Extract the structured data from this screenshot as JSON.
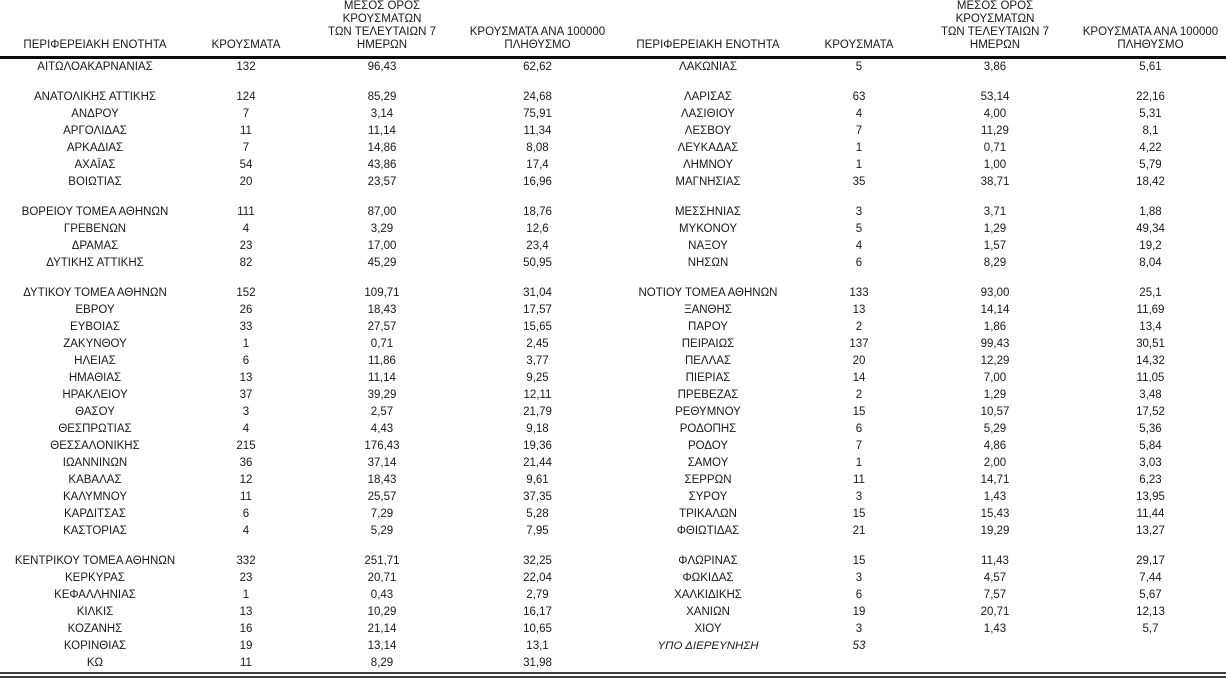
{
  "document_type": "regional-covid-case-table",
  "colors": {
    "background": "#ffffff",
    "text": "#1a1a1a",
    "header_rule": "#0c0c0c",
    "bottom_rule": "#3f3f3f"
  },
  "header": {
    "region": "ΠΕΡΙΦΕΡΕΙΑΚΗ ΕΝΟΤΗΤΑ",
    "cases": "ΚΡΟΥΣΜΑΤΑ",
    "avg7": "ΜΕΣΟΣ ΟΡΟΣ ΚΡΟΥΣΜΑΤΩΝ\nΤΩΝ ΤΕΛΕΥΤΑΙΩΝ 7\nΗΜΕΡΩΝ",
    "per100k": "ΚΡΟΥΣΜΑΤΑ ΑΝΑ 100000\nΠΛΗΘΥΣΜΟ"
  },
  "rows": [
    {
      "left": [
        "ΑΙΤΩΛΟΑΚΑΡΝΑΝΙΑΣ",
        "132",
        "96,43",
        "62,62"
      ],
      "right": [
        "ΛΑΚΩΝΙΑΣ",
        "5",
        "3,86",
        "5,61"
      ]
    },
    {
      "gap": true
    },
    {
      "left": [
        "ΑΝΑΤΟΛΙΚΗΣ ΑΤΤΙΚΗΣ",
        "124",
        "85,29",
        "24,68"
      ],
      "right": [
        "ΛΑΡΙΣΑΣ",
        "63",
        "53,14",
        "22,16"
      ]
    },
    {
      "left": [
        "ΑΝΔΡΟΥ",
        "7",
        "3,14",
        "75,91"
      ],
      "right": [
        "ΛΑΣΙΘΙΟΥ",
        "4",
        "4,00",
        "5,31"
      ]
    },
    {
      "left": [
        "ΑΡΓΟΛΙΔΑΣ",
        "11",
        "11,14",
        "11,34"
      ],
      "right": [
        "ΛΕΣΒΟΥ",
        "7",
        "11,29",
        "8,1"
      ]
    },
    {
      "left": [
        "ΑΡΚΑΔΙΑΣ",
        "7",
        "14,86",
        "8,08"
      ],
      "right": [
        "ΛΕΥΚΑΔΑΣ",
        "1",
        "0,71",
        "4,22"
      ]
    },
    {
      "left": [
        "ΑΧΑΪΑΣ",
        "54",
        "43,86",
        "17,4"
      ],
      "right": [
        "ΛΗΜΝΟΥ",
        "1",
        "1,00",
        "5,79"
      ]
    },
    {
      "left": [
        "ΒΟΙΩΤΙΑΣ",
        "20",
        "23,57",
        "16,96"
      ],
      "right": [
        "ΜΑΓΝΗΣΙΑΣ",
        "35",
        "38,71",
        "18,42"
      ]
    },
    {
      "gap": true
    },
    {
      "left": [
        "ΒΟΡΕΙΟΥ ΤΟΜΕΑ ΑΘΗΝΩΝ",
        "111",
        "87,00",
        "18,76"
      ],
      "right": [
        "ΜΕΣΣΗΝΙΑΣ",
        "3",
        "3,71",
        "1,88"
      ]
    },
    {
      "left": [
        "ΓΡΕΒΕΝΩΝ",
        "4",
        "3,29",
        "12,6"
      ],
      "right": [
        "ΜΥΚΟΝΟΥ",
        "5",
        "1,29",
        "49,34"
      ]
    },
    {
      "left": [
        "ΔΡΑΜΑΣ",
        "23",
        "17,00",
        "23,4"
      ],
      "right": [
        "ΝΑΞΟΥ",
        "4",
        "1,57",
        "19,2"
      ]
    },
    {
      "left": [
        "ΔΥΤΙΚΗΣ ΑΤΤΙΚΗΣ",
        "82",
        "45,29",
        "50,95"
      ],
      "right": [
        "ΝΗΣΩΝ",
        "6",
        "8,29",
        "8,04"
      ]
    },
    {
      "gap": true
    },
    {
      "left": [
        "ΔΥΤΙΚΟΥ ΤΟΜΕΑ ΑΘΗΝΩΝ",
        "152",
        "109,71",
        "31,04"
      ],
      "right": [
        "ΝΟΤΙΟΥ ΤΟΜΕΑ ΑΘΗΝΩΝ",
        "133",
        "93,00",
        "25,1"
      ]
    },
    {
      "left": [
        "ΕΒΡΟΥ",
        "26",
        "18,43",
        "17,57"
      ],
      "right": [
        "ΞΑΝΘΗΣ",
        "13",
        "14,14",
        "11,69"
      ]
    },
    {
      "left": [
        "ΕΥΒΟΙΑΣ",
        "33",
        "27,57",
        "15,65"
      ],
      "right": [
        "ΠΑΡΟΥ",
        "2",
        "1,86",
        "13,4"
      ]
    },
    {
      "left": [
        "ΖΑΚΥΝΘΟΥ",
        "1",
        "0,71",
        "2,45"
      ],
      "right": [
        "ΠΕΙΡΑΙΩΣ",
        "137",
        "99,43",
        "30,51"
      ]
    },
    {
      "left": [
        "ΗΛΕΙΑΣ",
        "6",
        "11,86",
        "3,77"
      ],
      "right": [
        "ΠΕΛΛΑΣ",
        "20",
        "12,29",
        "14,32"
      ]
    },
    {
      "left": [
        "ΗΜΑΘΙΑΣ",
        "13",
        "11,14",
        "9,25"
      ],
      "right": [
        "ΠΙΕΡΙΑΣ",
        "14",
        "7,00",
        "11,05"
      ]
    },
    {
      "left": [
        "ΗΡΑΚΛΕΙΟΥ",
        "37",
        "39,29",
        "12,11"
      ],
      "right": [
        "ΠΡΕΒΕΖΑΣ",
        "2",
        "1,29",
        "3,48"
      ]
    },
    {
      "left": [
        "ΘΑΣΟΥ",
        "3",
        "2,57",
        "21,79"
      ],
      "right": [
        "ΡΕΘΥΜΝΟΥ",
        "15",
        "10,57",
        "17,52"
      ]
    },
    {
      "left": [
        "ΘΕΣΠΡΩΤΙΑΣ",
        "4",
        "4,43",
        "9,18"
      ],
      "right": [
        "ΡΟΔΟΠΗΣ",
        "6",
        "5,29",
        "5,36"
      ]
    },
    {
      "left": [
        "ΘΕΣΣΑΛΟΝΙΚΗΣ",
        "215",
        "176,43",
        "19,36"
      ],
      "right": [
        "ΡΟΔΟΥ",
        "7",
        "4,86",
        "5,84"
      ]
    },
    {
      "left": [
        "ΙΩΑΝΝΙΝΩΝ",
        "36",
        "37,14",
        "21,44"
      ],
      "right": [
        "ΣΑΜΟΥ",
        "1",
        "2,00",
        "3,03"
      ]
    },
    {
      "left": [
        "ΚΑΒΑΛΑΣ",
        "12",
        "18,43",
        "9,61"
      ],
      "right": [
        "ΣΕΡΡΩΝ",
        "11",
        "14,71",
        "6,23"
      ]
    },
    {
      "left": [
        "ΚΑΛΥΜΝΟΥ",
        "11",
        "25,57",
        "37,35"
      ],
      "right": [
        "ΣΥΡΟΥ",
        "3",
        "1,43",
        "13,95"
      ]
    },
    {
      "left": [
        "ΚΑΡΔΙΤΣΑΣ",
        "6",
        "7,29",
        "5,28"
      ],
      "right": [
        "ΤΡΙΚΑΛΩΝ",
        "15",
        "15,43",
        "11,44"
      ]
    },
    {
      "left": [
        "ΚΑΣΤΟΡΙΑΣ",
        "4",
        "5,29",
        "7,95"
      ],
      "right": [
        "ΦΘΙΩΤΙΔΑΣ",
        "21",
        "19,29",
        "13,27"
      ]
    },
    {
      "gap": true
    },
    {
      "left": [
        "ΚΕΝΤΡΙΚΟΥ ΤΟΜΕΑ ΑΘΗΝΩΝ",
        "332",
        "251,71",
        "32,25"
      ],
      "right": [
        "ΦΛΩΡΙΝΑΣ",
        "15",
        "11,43",
        "29,17"
      ]
    },
    {
      "left": [
        "ΚΕΡΚΥΡΑΣ",
        "23",
        "20,71",
        "22,04"
      ],
      "right": [
        "ΦΩΚΙΔΑΣ",
        "3",
        "4,57",
        "7,44"
      ]
    },
    {
      "left": [
        "ΚΕΦΑΛΛΗΝΙΑΣ",
        "1",
        "0,43",
        "2,79"
      ],
      "right": [
        "ΧΑΛΚΙΔΙΚΗΣ",
        "6",
        "7,57",
        "5,67"
      ]
    },
    {
      "left": [
        "ΚΙΛΚΙΣ",
        "13",
        "10,29",
        "16,17"
      ],
      "right": [
        "ΧΑΝΙΩΝ",
        "19",
        "20,71",
        "12,13"
      ]
    },
    {
      "left": [
        "ΚΟΖΑΝΗΣ",
        "16",
        "21,14",
        "10,65"
      ],
      "right": [
        "ΧΙΟΥ",
        "3",
        "1,43",
        "5,7"
      ]
    },
    {
      "left": [
        "ΚΟΡΙΝΘΙΑΣ",
        "19",
        "13,14",
        "13,1"
      ],
      "right": [
        "ΥΠΟ ΔΙΕΡΕΥΝΗΣΗ",
        "53",
        "",
        ""
      ],
      "right_italic": true
    },
    {
      "left": [
        "ΚΩ",
        "11",
        "8,29",
        "31,98"
      ],
      "right": null
    }
  ]
}
